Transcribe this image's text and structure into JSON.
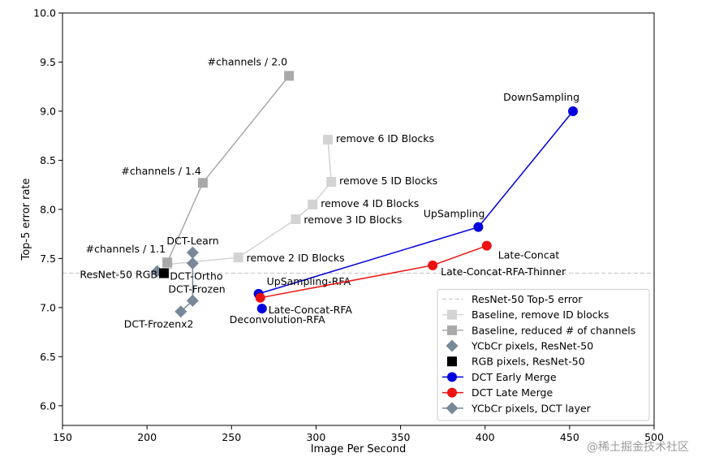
{
  "watermark": "@稀土掘金技术社区",
  "chart_data": {
    "type": "scatter",
    "title": "",
    "xlabel": "Image Per Second",
    "ylabel": "Top-5 error rate",
    "xlim": [
      150,
      500
    ],
    "ylim": [
      5.8,
      10.0
    ],
    "xticks": [
      150,
      200,
      250,
      300,
      350,
      400,
      450,
      500
    ],
    "yticks": [
      6.0,
      6.5,
      7.0,
      7.5,
      8.0,
      8.5,
      9.0,
      9.5,
      10.0
    ],
    "grid": false,
    "legend_position": "lower-right",
    "reference_lines": [
      {
        "name": "ResNet-50 Top-5 error",
        "y": 7.35,
        "color": "#cccccc",
        "style": "dashed"
      }
    ],
    "series": [
      {
        "name": "Baseline, remove ID blocks",
        "marker": "square",
        "color": "#d3d3d3",
        "line": true,
        "points": [
          {
            "x": 212,
            "y": 7.44,
            "label": ""
          },
          {
            "x": 254,
            "y": 7.51,
            "label": "remove 2 ID Blocks"
          },
          {
            "x": 288,
            "y": 7.9,
            "label": "remove 3 ID Blocks"
          },
          {
            "x": 298,
            "y": 8.05,
            "label": "remove 4 ID Blocks"
          },
          {
            "x": 309,
            "y": 8.28,
            "label": "remove 5 ID Blocks"
          },
          {
            "x": 307,
            "y": 8.71,
            "label": "remove 6 ID Blocks"
          }
        ]
      },
      {
        "name": "Baseline, reduced # of channels",
        "marker": "square",
        "color": "#a9a9a9",
        "line": true,
        "points": [
          {
            "x": 212,
            "y": 7.46,
            "label": "#channels / 1.1"
          },
          {
            "x": 233,
            "y": 8.27,
            "label": "#channels / 1.4"
          },
          {
            "x": 284,
            "y": 9.36,
            "label": "#channels / 2.0"
          }
        ]
      },
      {
        "name": "YCbCr pixels, ResNet-50",
        "marker": "diamond",
        "color": "#778899",
        "line": false,
        "points": [
          {
            "x": 206,
            "y": 7.37,
            "label": ""
          }
        ]
      },
      {
        "name": "RGB pixels, ResNet-50",
        "marker": "square",
        "color": "#000000",
        "line": false,
        "points": [
          {
            "x": 210,
            "y": 7.35,
            "label": "ResNet-50 RGB"
          }
        ]
      },
      {
        "name": "DCT Early Merge",
        "marker": "circle",
        "color": "#0000dd",
        "line": true,
        "points": [
          {
            "x": 266,
            "y": 7.14,
            "label": "UpSampling-RFA"
          },
          {
            "x": 396,
            "y": 7.82,
            "label": "UpSampling"
          },
          {
            "x": 452,
            "y": 9.0,
            "label": "DownSampling"
          }
        ],
        "extra_points": [
          {
            "x": 268,
            "y": 6.99,
            "label": "Deconvolution-RFA"
          }
        ]
      },
      {
        "name": "DCT Late Merge",
        "marker": "circle",
        "color": "#ee1111",
        "line": true,
        "points": [
          {
            "x": 267,
            "y": 7.1,
            "label": "Late-Concat-RFA"
          },
          {
            "x": 369,
            "y": 7.43,
            "label": "Late-Concat-RFA-Thinner"
          },
          {
            "x": 401,
            "y": 7.63,
            "label": "Late-Concat"
          }
        ]
      },
      {
        "name": "YCbCr pixels, DCT layer",
        "marker": "diamond",
        "color": "#778899",
        "line": true,
        "points": [
          {
            "x": 220,
            "y": 6.96,
            "label": "DCT-Frozenx2"
          },
          {
            "x": 227,
            "y": 7.07,
            "label": "DCT-Frozen"
          },
          {
            "x": 227,
            "y": 7.45,
            "label": "DCT-Ortho"
          },
          {
            "x": 227,
            "y": 7.56,
            "label": "DCT-Learn"
          }
        ]
      }
    ]
  }
}
